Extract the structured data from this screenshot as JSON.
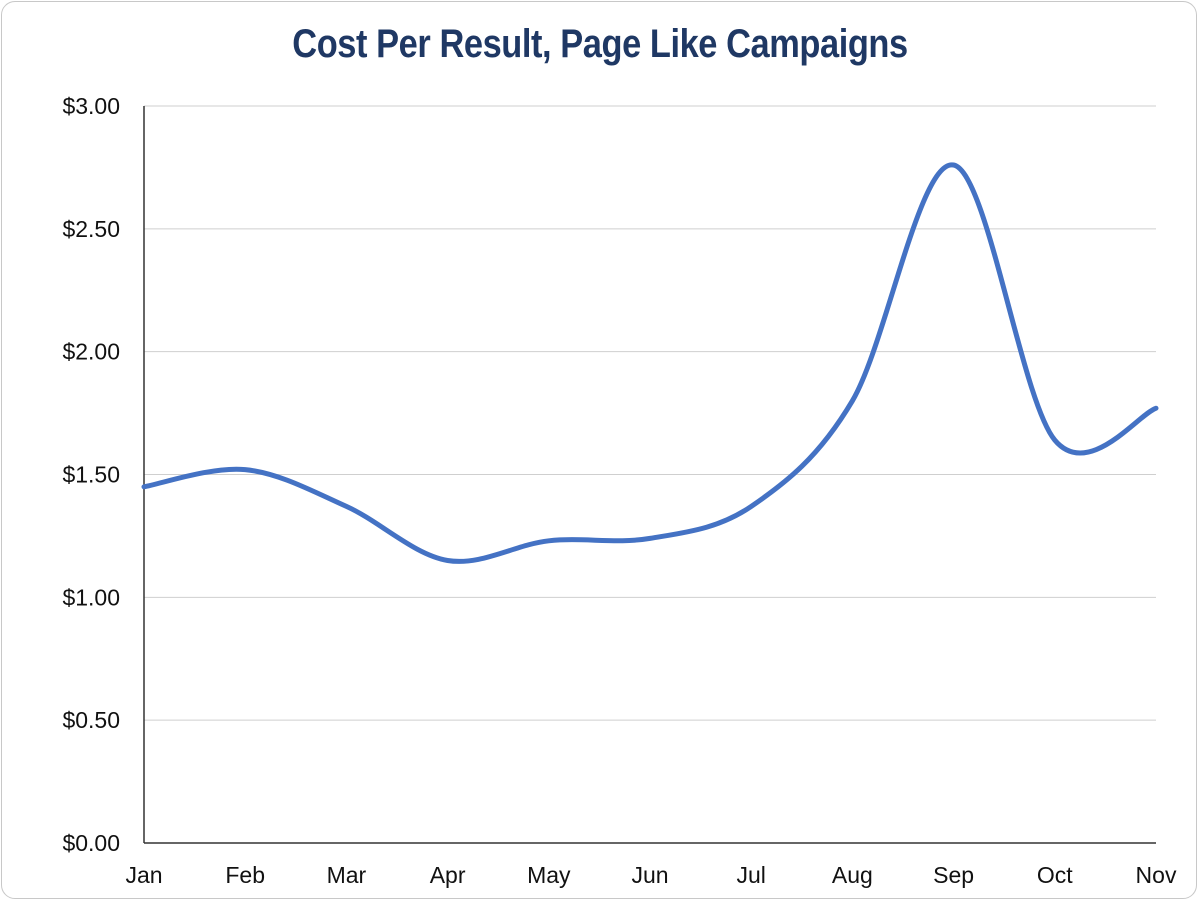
{
  "chart_data": {
    "type": "line",
    "title": "Cost Per Result, Page Like Campaigns",
    "xlabel": "",
    "ylabel": "",
    "categories": [
      "Jan",
      "Feb",
      "Mar",
      "Apr",
      "May",
      "Jun",
      "Jul",
      "Aug",
      "Sep",
      "Oct",
      "Nov"
    ],
    "series": [
      {
        "name": "Cost Per Result",
        "values": [
          1.45,
          1.52,
          1.37,
          1.15,
          1.23,
          1.24,
          1.37,
          1.8,
          2.76,
          1.64,
          1.77
        ],
        "color": "#4472c4"
      }
    ],
    "ylim": [
      0,
      3
    ],
    "yticks": [
      0,
      0.5,
      1,
      1.5,
      2,
      2.5,
      3
    ],
    "ytick_labels": [
      "$0.00",
      "$0.50",
      "$1.00",
      "$1.50",
      "$2.00",
      "$2.50",
      "$3.00"
    ],
    "grid": true
  }
}
